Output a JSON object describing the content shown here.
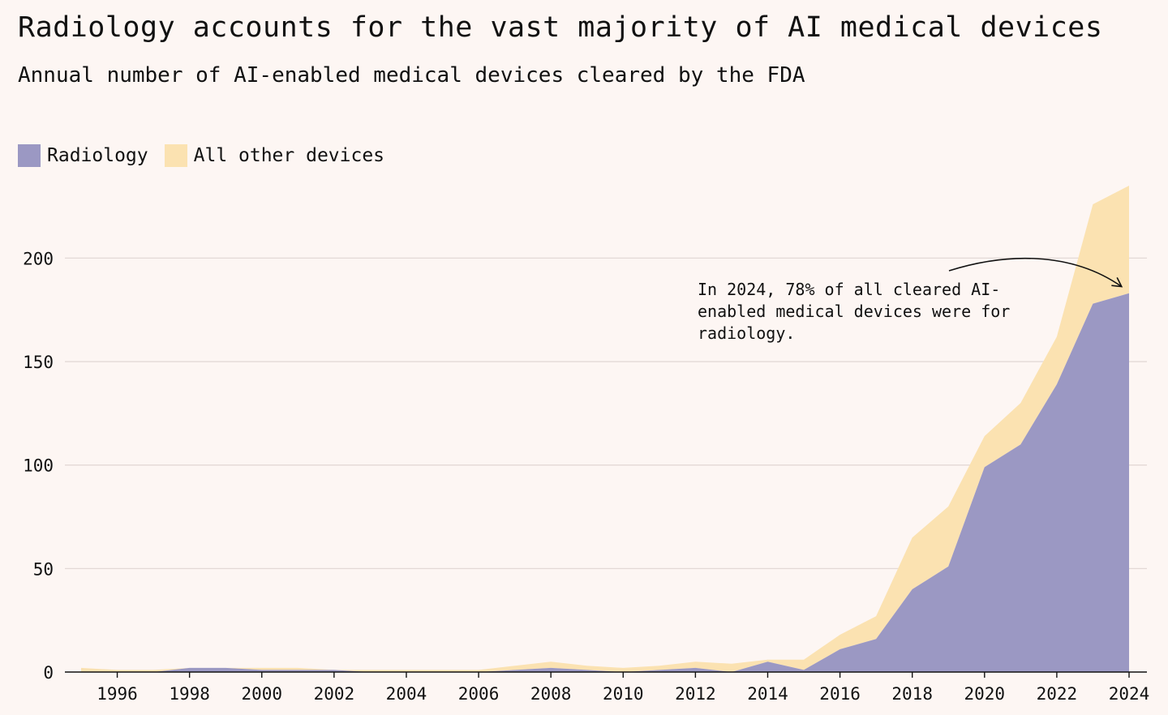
{
  "chart_data": {
    "type": "area",
    "title": "Radiology accounts for the vast majority of AI medical devices",
    "subtitle": "Annual number of AI-enabled medical devices cleared by the FDA",
    "xlabel": "",
    "ylabel": "",
    "stacked": true,
    "x": [
      1995,
      1996,
      1997,
      1998,
      1999,
      2000,
      2001,
      2002,
      2003,
      2004,
      2005,
      2006,
      2007,
      2008,
      2009,
      2010,
      2011,
      2012,
      2013,
      2014,
      2015,
      2016,
      2017,
      2018,
      2019,
      2020,
      2021,
      2022,
      2023,
      2024
    ],
    "series": [
      {
        "name": "Radiology",
        "color": "#9b98c3",
        "values": [
          0,
          0,
          0,
          2,
          2,
          1,
          1,
          1,
          0,
          0,
          0,
          0,
          1,
          2,
          1,
          0,
          1,
          2,
          0,
          5,
          1,
          11,
          16,
          40,
          51,
          99,
          110,
          139,
          178,
          183
        ]
      },
      {
        "name": "All other devices",
        "color": "#fbe2b1",
        "values": [
          2,
          1,
          1,
          0,
          0,
          1,
          1,
          0,
          1,
          1,
          1,
          1,
          2,
          3,
          2,
          2,
          2,
          3,
          4,
          1,
          5,
          7,
          11,
          25,
          29,
          15,
          20,
          23,
          48,
          52
        ]
      }
    ],
    "xticks": [
      "1996",
      "1998",
      "2000",
      "2002",
      "2004",
      "2006",
      "2008",
      "2010",
      "2012",
      "2014",
      "2016",
      "2018",
      "2020",
      "2022",
      "2024"
    ],
    "yticks": [
      "0",
      "50",
      "100",
      "150",
      "200"
    ],
    "ylim": [
      0,
      240
    ],
    "xlim": [
      1995,
      2024
    ],
    "grid": true,
    "legend_position": "top-left",
    "annotation": {
      "lines": [
        "In 2024, 78% of all cleared AI-",
        "enabled medical devices were for",
        "radiology."
      ]
    }
  }
}
